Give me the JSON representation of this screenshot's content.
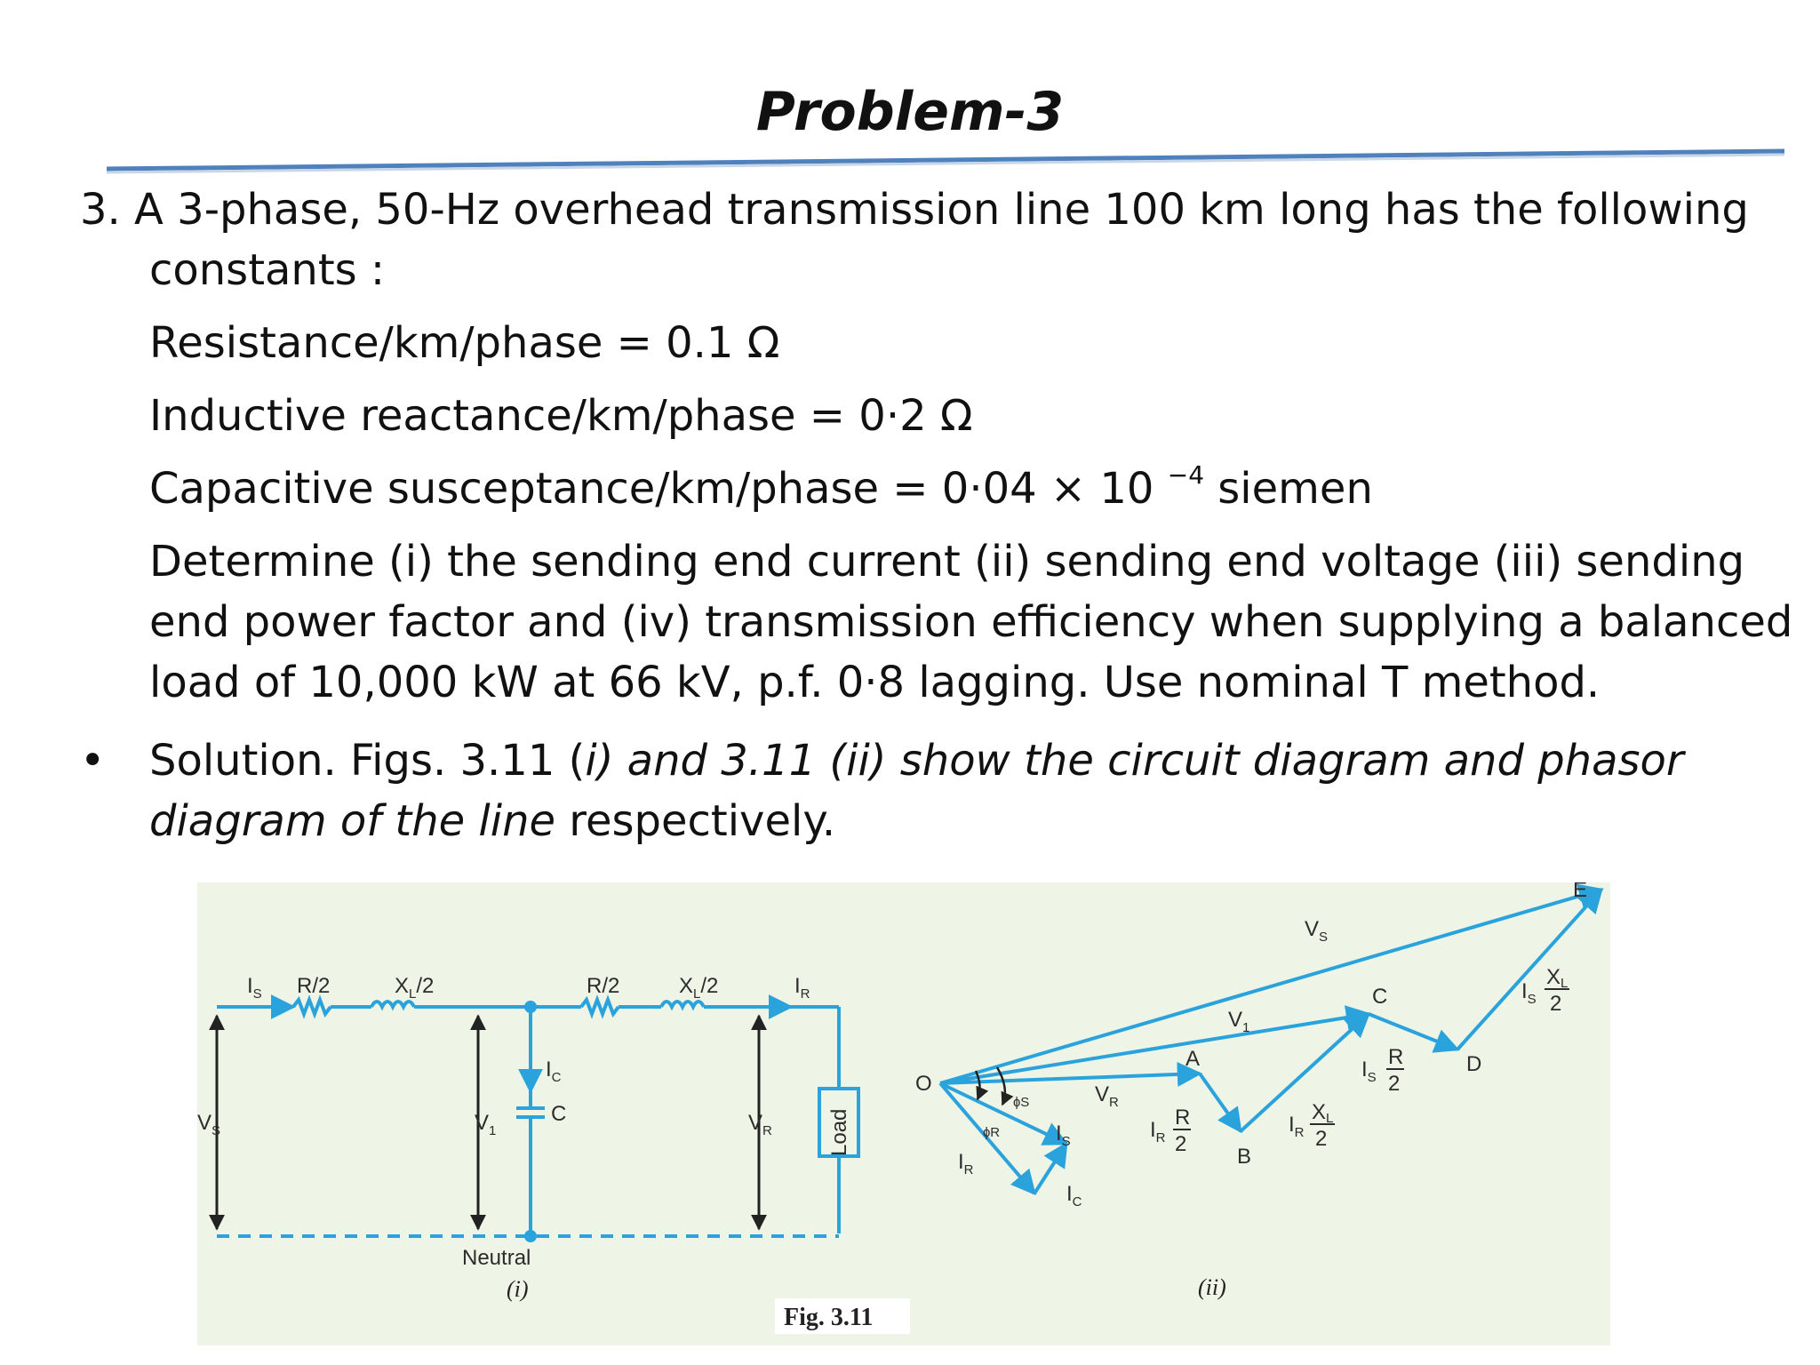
{
  "slide": {
    "title": "Problem-3",
    "problem_line1": "3. A 3-phase, 50-Hz overhead transmission line 100 km long has the following",
    "problem_line2": "constants :",
    "resistance": "Resistance/km/phase = 0.1 Ω",
    "inductive": "Inductive reactance/km/phase = 0·2 Ω",
    "capacitive_main": "Capacitive susceptance/km/phase = 0·04 × 10",
    "capacitive_exp": "−4",
    "capacitive_unit": " siemen",
    "determine_line1": "Determine (i) the sending end current (ii) sending end voltage (iii) sending",
    "determine_line2": "end power factor and (iv) transmission efficiency when supplying a balanced",
    "determine_line3": "load of 10,000 kW at 66 kV, p.f. 0·8 lagging. Use nominal T method.",
    "solution_a": "Solution. Figs. 3.11 (",
    "solution_b": "i) and 3.11 (ii) show the circuit diagram and phasor",
    "solution_c": "diagram of the line",
    "solution_d": " respectively."
  },
  "figure": {
    "caption": "Fig. 3.11",
    "circuit": {
      "is": "I",
      "is_sub": "S",
      "r_half": "R/2",
      "xl_half": "X",
      "xl_sub": "L",
      "xl_tail": "/2",
      "r_half2": "R/2",
      "xl_half2": "X",
      "xl_sub2": "L",
      "xl_tail2": "/2",
      "ir": "I",
      "ir_sub": "R",
      "ic": "I",
      "ic_sub": "C",
      "c": "C",
      "vs": "V",
      "vs_sub": "S",
      "v1": "V",
      "v1_sub": "1",
      "vr": "V",
      "vr_sub": "R",
      "load": "Load",
      "neutral": "Neutral",
      "label": "(i)"
    },
    "phasor": {
      "o": "O",
      "e": "E",
      "vs": "V",
      "vs_sub": "S",
      "v1": "V",
      "v1_sub": "1",
      "vr": "V",
      "vr_sub": "R",
      "a": "A",
      "b": "B",
      "c": "C",
      "d": "D",
      "phi_s": "ɸS",
      "phi_r": "ɸR",
      "is": "I",
      "is_sub": "S",
      "ir": "I",
      "ir_sub": "R",
      "ic": "I",
      "ic_sub": "C",
      "ir_r2": "I",
      "ir_r2_sub": "R",
      "ir_r2_num": "R",
      "ir_r2_den": "2",
      "ir_x2": "I",
      "ir_x2_sub": "R",
      "ir_x2_num": "X",
      "ir_x2_numsub": "L",
      "ir_x2_den": "2",
      "is_r2": "I",
      "is_r2_sub": "S",
      "is_r2_num": "R",
      "is_r2_den": "2",
      "is_x2": "I",
      "is_x2_sub": "S",
      "is_x2_num": "X",
      "is_x2_numsub": "L",
      "is_x2_den": "2",
      "label": "(ii)"
    }
  },
  "colors": {
    "accent_rule": "#4f81bd",
    "diagram_blue": "#2aa3dc",
    "figure_bg": "#eef4e6"
  }
}
